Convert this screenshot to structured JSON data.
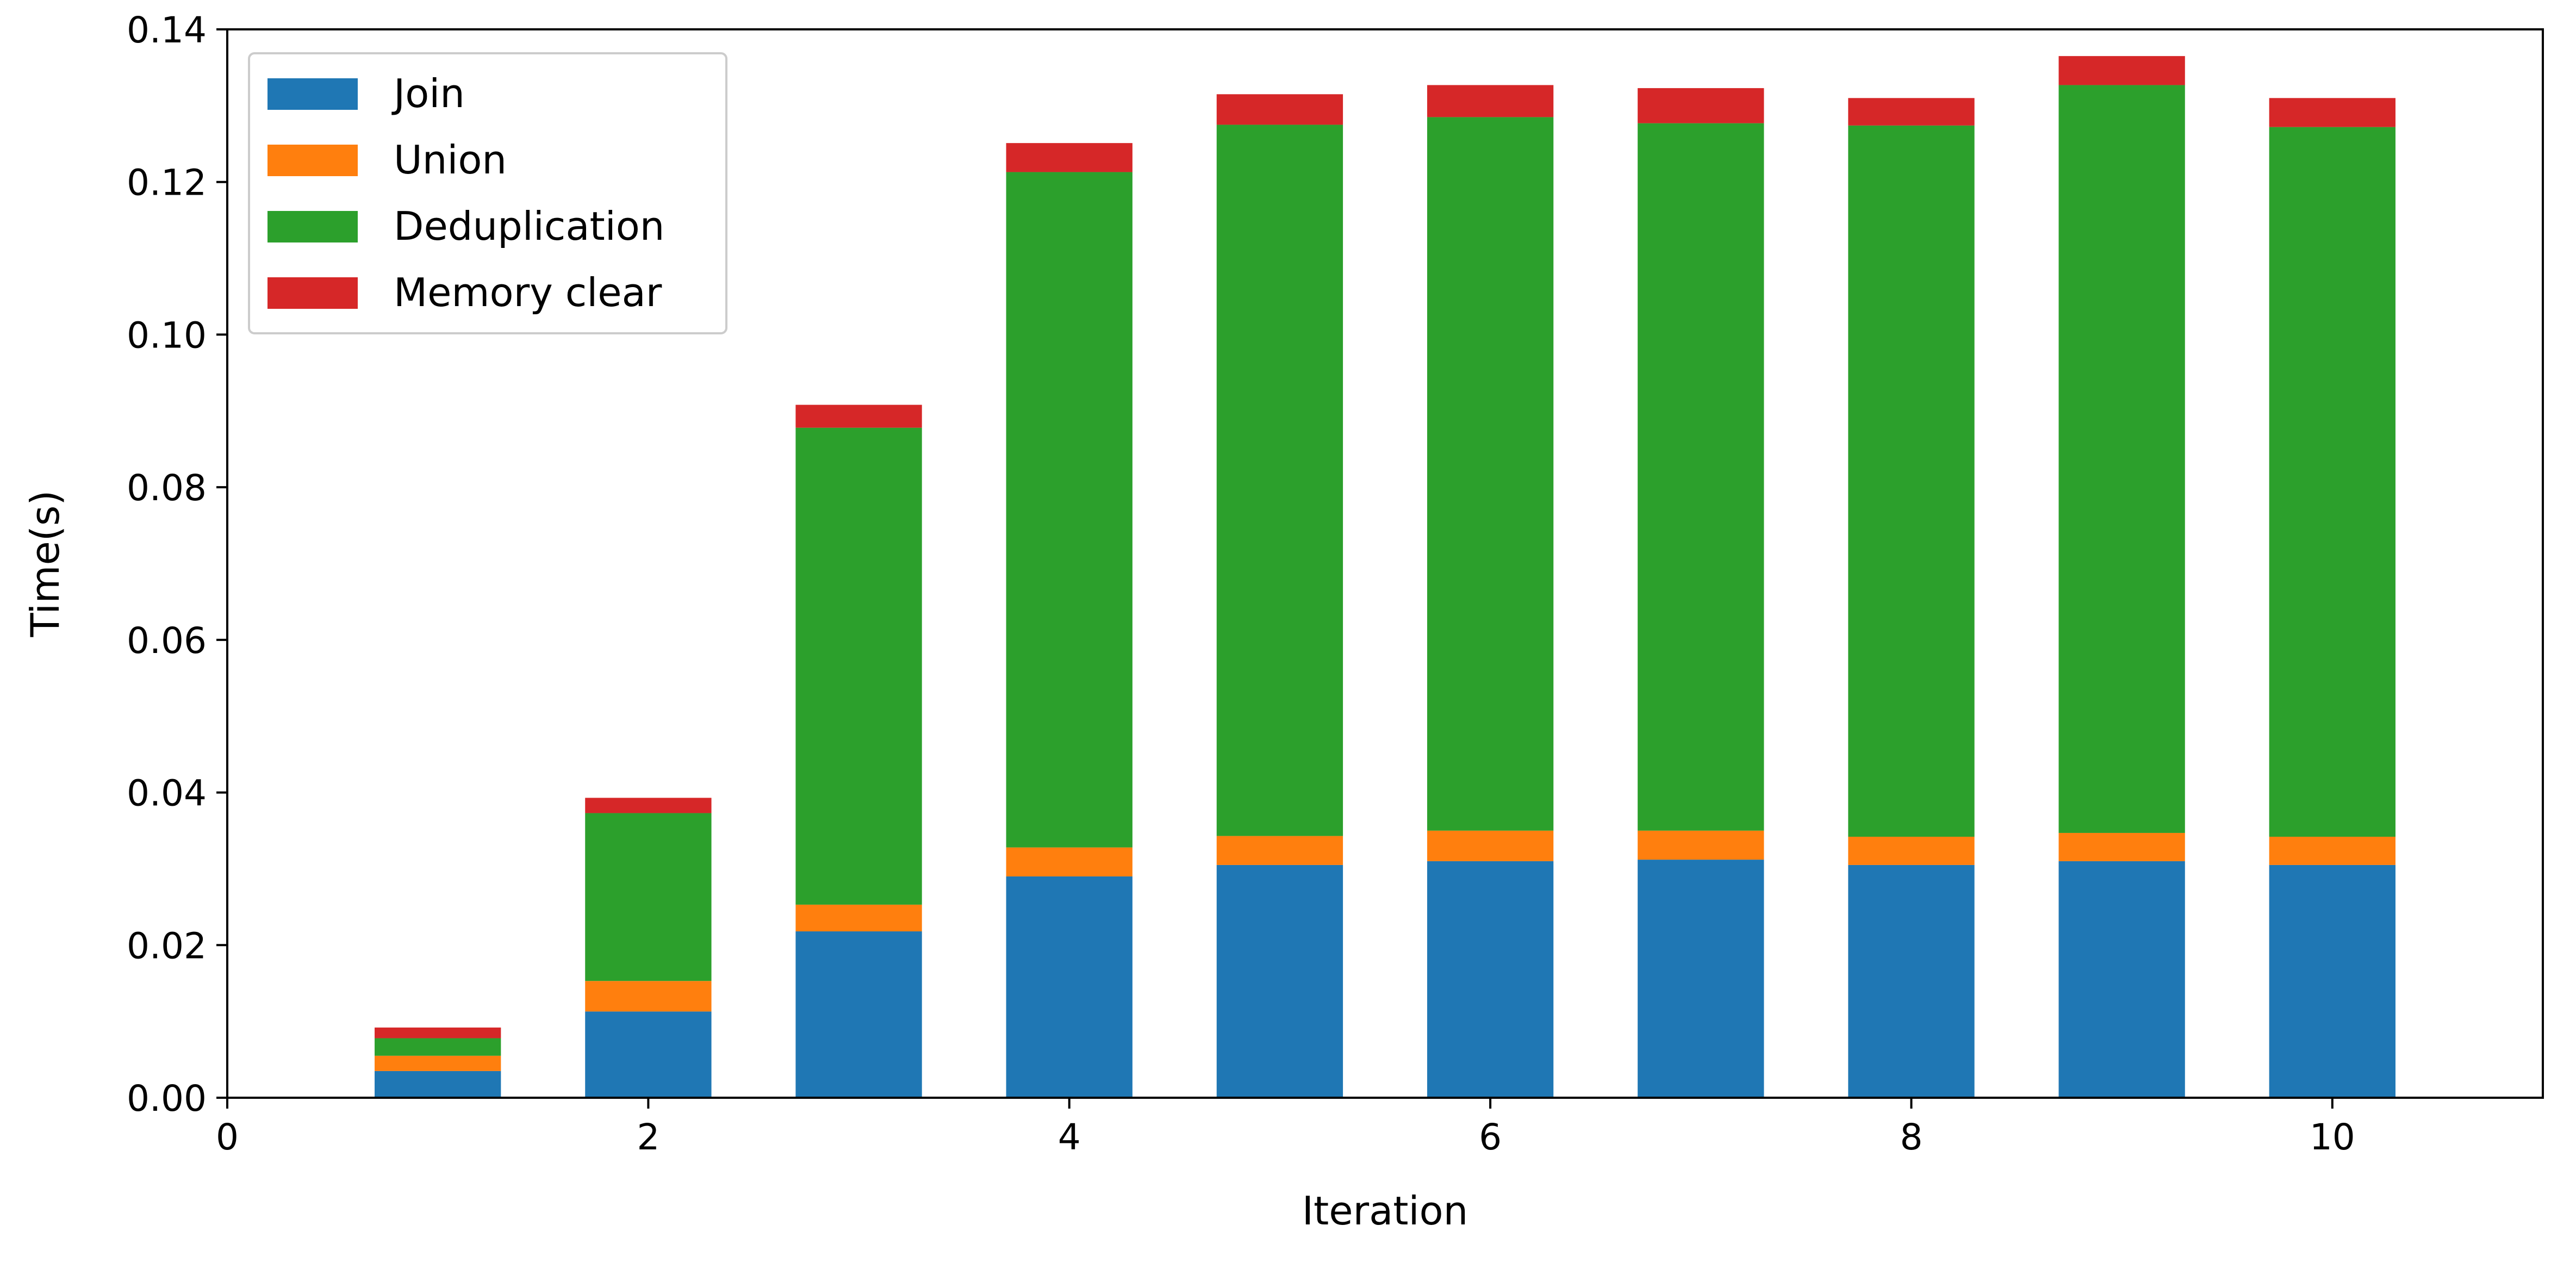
{
  "chart_data": {
    "type": "bar",
    "stacked": true,
    "title": "",
    "xlabel": "Iteration",
    "ylabel": "Time(s)",
    "xlim": [
      0,
      11
    ],
    "ylim": [
      0,
      0.14
    ],
    "xticks": [
      0,
      2,
      4,
      6,
      8,
      10
    ],
    "xtick_labels": [
      "0",
      "2",
      "4",
      "6",
      "8",
      "10"
    ],
    "yticks": [
      0.0,
      0.02,
      0.04,
      0.06,
      0.08,
      0.1,
      0.12,
      0.14
    ],
    "ytick_labels": [
      "0.00",
      "0.02",
      "0.04",
      "0.06",
      "0.08",
      "0.10",
      "0.12",
      "0.14"
    ],
    "bar_width": 0.6,
    "legend_position": "top-left",
    "grid": false,
    "x": [
      1,
      2,
      3,
      4,
      5,
      6,
      7,
      8,
      9,
      10
    ],
    "series": [
      {
        "name": "Join",
        "color": "#1f77b4",
        "values": [
          0.0035,
          0.0113,
          0.0218,
          0.029,
          0.0305,
          0.031,
          0.0312,
          0.0305,
          0.031,
          0.0305
        ]
      },
      {
        "name": "Union",
        "color": "#ff7f0e",
        "values": [
          0.002,
          0.004,
          0.0035,
          0.0038,
          0.0038,
          0.004,
          0.0038,
          0.0037,
          0.0037,
          0.0037
        ]
      },
      {
        "name": "Deduplication",
        "color": "#2ca02c",
        "values": [
          0.0023,
          0.022,
          0.0625,
          0.0885,
          0.0932,
          0.0935,
          0.0927,
          0.0932,
          0.098,
          0.093
        ]
      },
      {
        "name": "Memory clear",
        "color": "#d62728",
        "values": [
          0.0014,
          0.002,
          0.003,
          0.0038,
          0.004,
          0.0042,
          0.0046,
          0.0036,
          0.0038,
          0.0038
        ]
      }
    ]
  }
}
